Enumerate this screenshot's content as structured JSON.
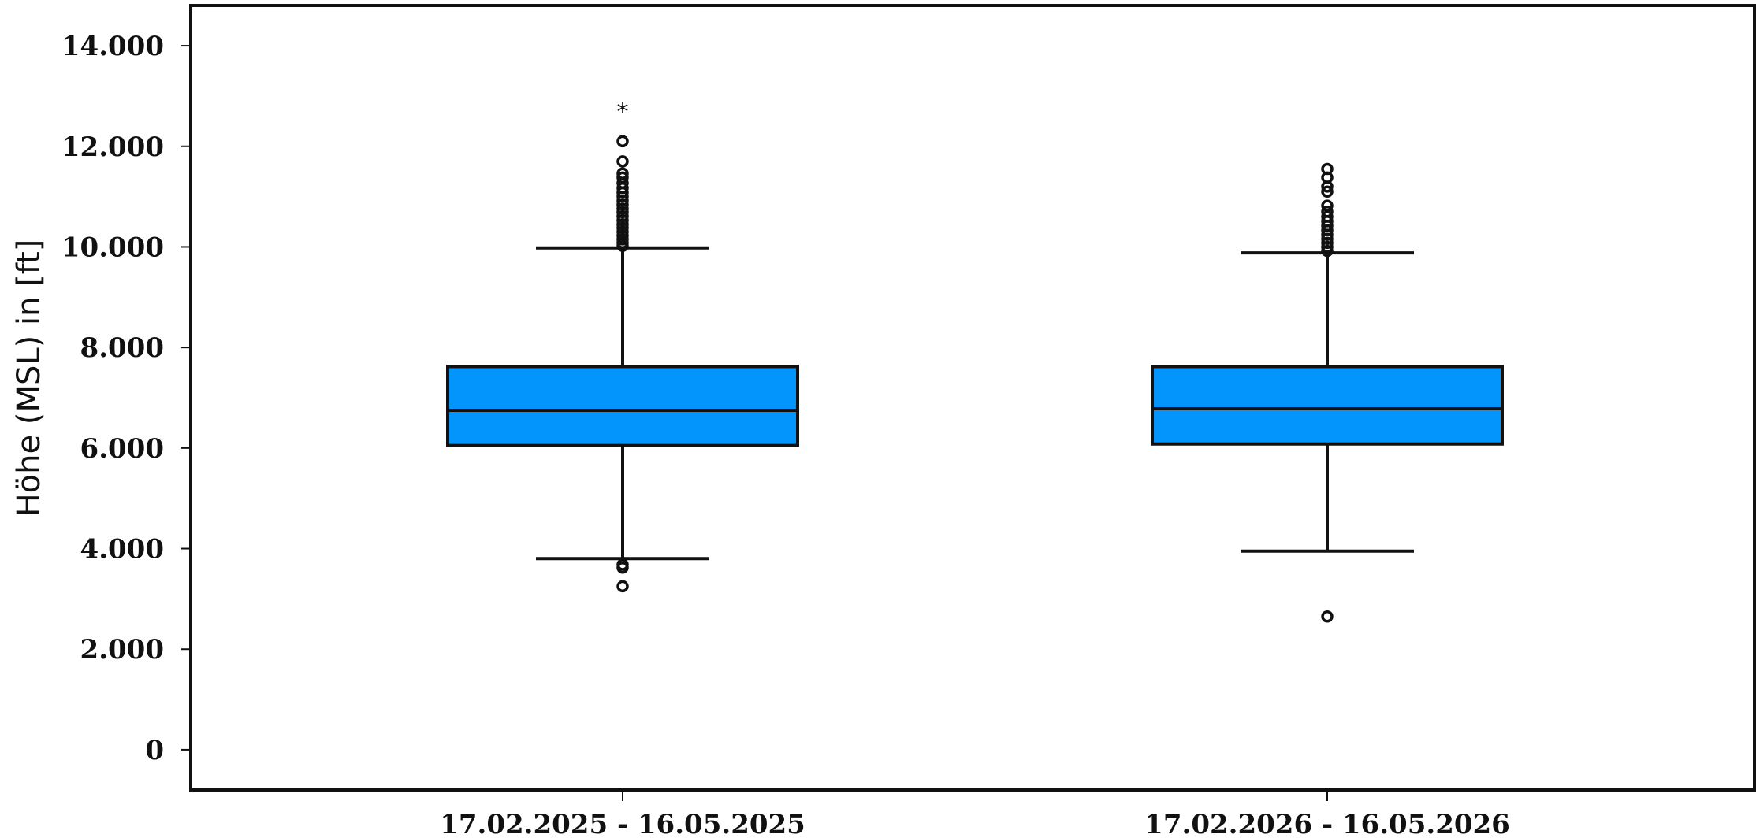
{
  "chart_data": {
    "type": "boxplot",
    "ylabel": "Höhe (MSL) in [ft]",
    "ylim": [
      -800,
      14800
    ],
    "yticks": [
      {
        "value": 0,
        "label": "0"
      },
      {
        "value": 2000,
        "label": "2.000"
      },
      {
        "value": 4000,
        "label": "4.000"
      },
      {
        "value": 6000,
        "label": "6.000"
      },
      {
        "value": 8000,
        "label": "8.000"
      },
      {
        "value": 10000,
        "label": "10.000"
      },
      {
        "value": 12000,
        "label": "12.000"
      },
      {
        "value": 14000,
        "label": "14.000"
      }
    ],
    "categories": [
      "17.02.2025 - 16.05.2025",
      "17.02.2026 - 16.05.2026"
    ],
    "box_color": "#0394fc",
    "boxes": [
      {
        "category": "17.02.2025 - 16.05.2025",
        "whisker_low": 3800,
        "q1": 6050,
        "median": 6750,
        "q3": 7620,
        "whisker_high": 9980,
        "outliers": [
          3250,
          3620,
          3680,
          10020,
          10080,
          10150,
          10220,
          10300,
          10380,
          10450,
          10530,
          10610,
          10690,
          10760,
          10840,
          10920,
          11000,
          11080,
          11170,
          11270,
          11380,
          11460,
          11700,
          12100
        ],
        "extremes": [
          12750
        ]
      },
      {
        "category": "17.02.2026 - 16.05.2026",
        "whisker_low": 3950,
        "q1": 6080,
        "median": 6780,
        "q3": 7620,
        "whisker_high": 9880,
        "outliers": [
          2650,
          9920,
          10000,
          10080,
          10160,
          10240,
          10330,
          10420,
          10510,
          10600,
          10700,
          10820,
          11100,
          11200,
          11380,
          11550
        ],
        "extremes": []
      }
    ]
  }
}
